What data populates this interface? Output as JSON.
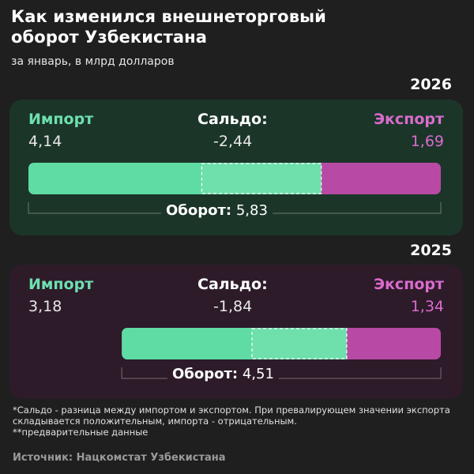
{
  "header": {
    "title_line1": "Как изменился внешнеторговый",
    "title_line2": "оборот Узбекистана",
    "subtitle": "за январь, в млрд долларов"
  },
  "colors": {
    "import": "#6ee0b0",
    "export": "#d96ccc",
    "bar_import": "#5fdca3",
    "bar_export": "#b84aa6",
    "panel_2026": "#1b3529",
    "panel_2025": "#2d1b2a"
  },
  "labels": {
    "import": "Импорт",
    "saldo": "Сальдо:",
    "export": "Экспорт",
    "turnover": "Оборот:"
  },
  "chart_data": {
    "type": "bar",
    "orientation": "horizontal-stacked",
    "unit": "млрд долларов",
    "years": [
      {
        "year": "2026",
        "import": 4.14,
        "export": 1.69,
        "saldo": -2.44,
        "turnover": 5.83,
        "import_text": "4,14",
        "export_text": "1,69",
        "saldo_text": "-2,44",
        "turnover_text": "5,83"
      },
      {
        "year": "2025",
        "import": 3.18,
        "export": 1.34,
        "saldo": -1.84,
        "turnover": 4.51,
        "import_text": "3,18",
        "export_text": "1,34",
        "saldo_text": "-1,84",
        "turnover_text": "4,51"
      }
    ]
  },
  "footnotes": {
    "note1": "*Сальдо - разница между импортом и экспортом. При превалирующем значении экспорта складывается положительным, импорта - отрицательным.",
    "note2": "**предварительные данные",
    "source": "Источник: Нацкомстат Узбекистана"
  }
}
